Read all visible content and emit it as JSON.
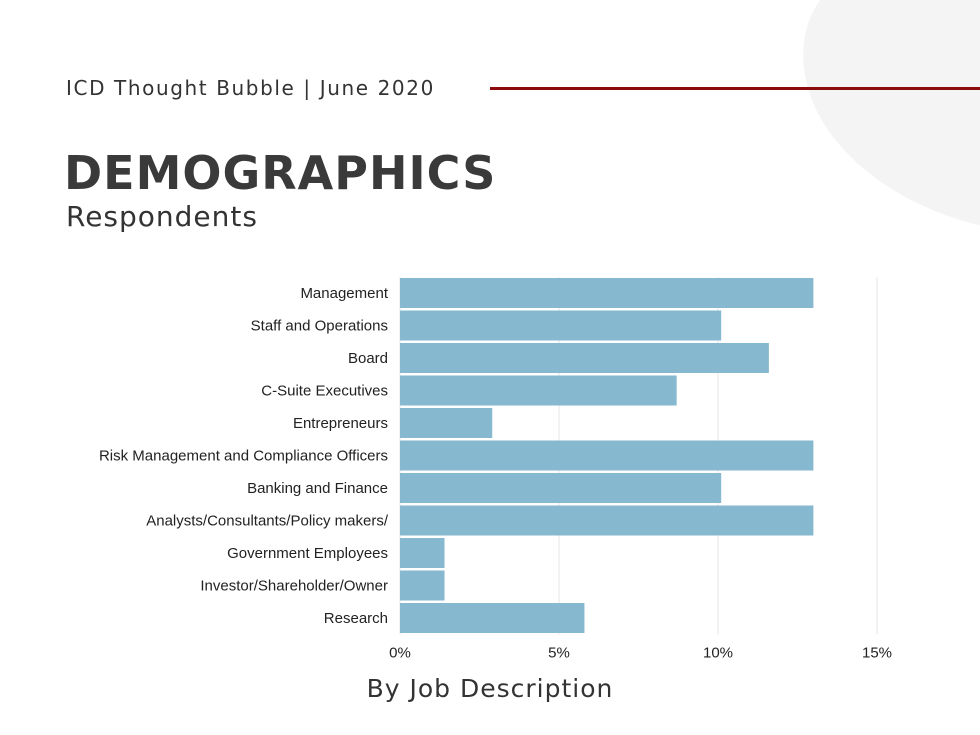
{
  "header": {
    "text": "ICD Thought Bubble | June 2020",
    "rule_color": "#8b0a0a"
  },
  "title": "DEMOGRAPHICS",
  "subtitle": "Respondents",
  "chart_data": {
    "type": "bar",
    "orientation": "horizontal",
    "title": "",
    "xlabel": "By Job Description",
    "ylabel": "",
    "categories": [
      "Management",
      "Staff and Operations",
      "Board",
      "C-Suite Executives",
      "Entrepreneurs",
      "Risk Management and Compliance Officers",
      "Banking and Finance",
      "Analysts/Consultants/Policy makers/",
      "Government Employees",
      "Investor/Shareholder/Owner",
      "Research"
    ],
    "values": [
      13.0,
      10.1,
      11.6,
      8.7,
      2.9,
      13.0,
      10.1,
      13.0,
      1.4,
      1.4,
      5.8
    ],
    "unit": "%",
    "xlim": [
      0,
      15
    ],
    "xticks": [
      "0%",
      "5%",
      "10%",
      "15%"
    ],
    "grid": true,
    "bar_color": "#86b8cf"
  }
}
